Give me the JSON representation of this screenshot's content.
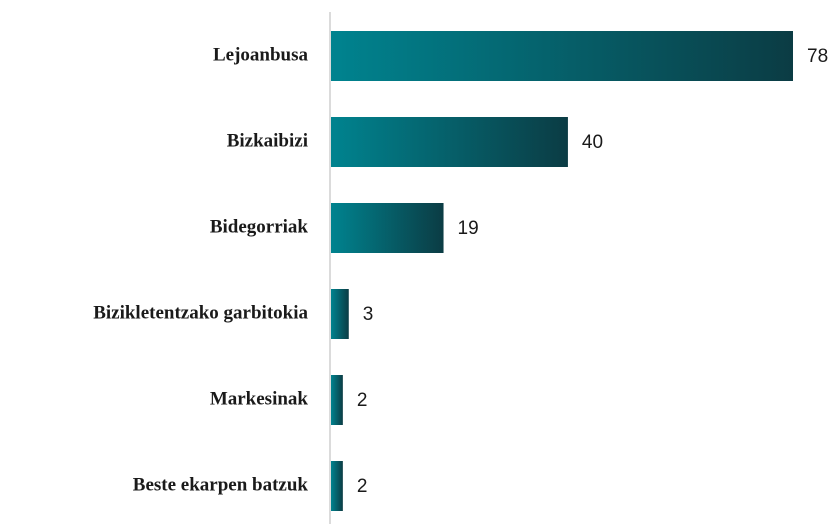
{
  "chart_data": {
    "type": "bar",
    "orientation": "horizontal",
    "categories": [
      "Lejoanbusa",
      "Bizkaibizi",
      "Bidegorriak",
      "Bizikletentzako garbitokia",
      "Markesinak",
      "Beste ekarpen batzuk"
    ],
    "values": [
      78,
      40,
      19,
      3,
      2,
      2
    ],
    "color": "#00838f"
  }
}
